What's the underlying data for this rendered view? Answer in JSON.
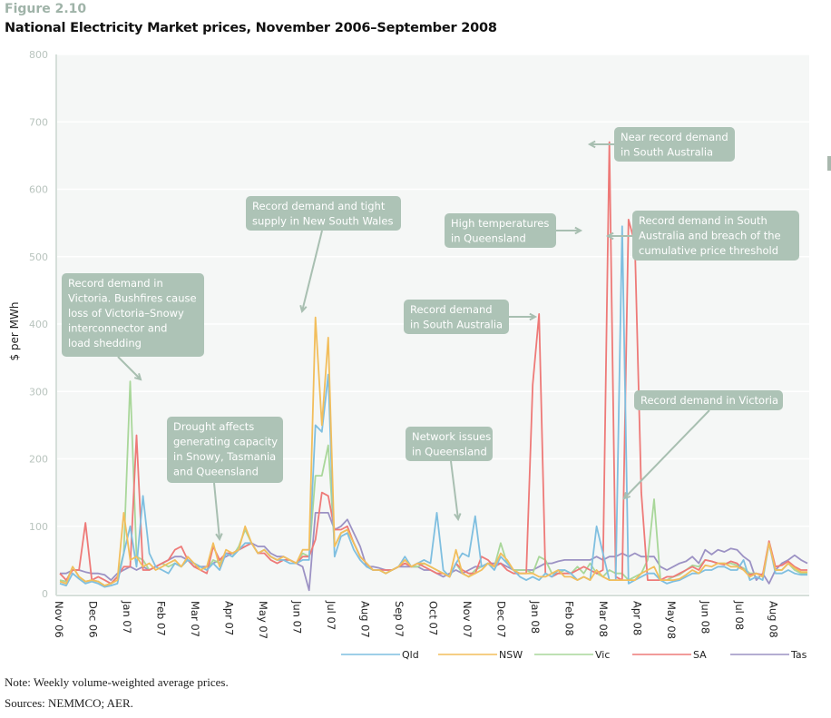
{
  "figure": {
    "label": "Figure 2.10",
    "title": "National Electricity Market prices, November 2006–September 2008"
  },
  "notes": {
    "note": "Note:  Weekly volume-weighted average prices.",
    "sources": "Sources:  NEMMCO; AER."
  },
  "chart_data": {
    "type": "line",
    "title": "National Electricity Market prices, November 2006–September 2008",
    "xlabel": "",
    "ylabel": "$ per MWh",
    "ylim": [
      0,
      800
    ],
    "yticks": [
      0,
      100,
      200,
      300,
      400,
      500,
      600,
      700,
      800
    ],
    "grid": true,
    "legend_position": "bottom-right",
    "x_ticks": [
      "Nov 06",
      "Dec 06",
      "Jan 07",
      "Feb 07",
      "Mar 07",
      "Apr 07",
      "May 07",
      "Jun 07",
      "Jul 07",
      "Aug 07",
      "Sep 07",
      "Oct 07",
      "Nov 07",
      "Dec 07",
      "Jan 08",
      "Feb 08",
      "Mar 08",
      "Apr 08",
      "May 08",
      "Jun 08",
      "Jul 08",
      "Aug 08"
    ],
    "x_unit": "week index (weekly points, week 0 = first week of Nov 06, ~4.3 weeks per month)",
    "series": [
      {
        "name": "Qld",
        "color": "#7fbfe0",
        "values": [
          15,
          12,
          30,
          22,
          15,
          18,
          15,
          10,
          12,
          15,
          60,
          100,
          40,
          145,
          60,
          40,
          35,
          30,
          45,
          40,
          50,
          45,
          40,
          35,
          45,
          35,
          60,
          55,
          65,
          75,
          75,
          60,
          65,
          55,
          50,
          50,
          45,
          45,
          50,
          50,
          250,
          240,
          325,
          55,
          85,
          90,
          65,
          50,
          40,
          35,
          35,
          30,
          35,
          40,
          55,
          40,
          45,
          50,
          45,
          120,
          35,
          25,
          45,
          60,
          55,
          115,
          40,
          45,
          35,
          55,
          45,
          35,
          25,
          20,
          25,
          20,
          30,
          25,
          35,
          35,
          30,
          20,
          25,
          20,
          100,
          60,
          20,
          20,
          545,
          15,
          20,
          25,
          30,
          30,
          20,
          15
        ],
        "values_tail": [
          18,
          20,
          25,
          30,
          30,
          35,
          35,
          40,
          40,
          35,
          35,
          50,
          20,
          25,
          20,
          75,
          30,
          30,
          35,
          30,
          28,
          28
        ]
      },
      {
        "name": "NSW",
        "color": "#f2be5c",
        "values": [
          18,
          15,
          40,
          25,
          18,
          20,
          18,
          12,
          15,
          20,
          120,
          50,
          55,
          40,
          45,
          35,
          40,
          45,
          50,
          40,
          55,
          45,
          35,
          40,
          75,
          40,
          65,
          60,
          65,
          100,
          75,
          60,
          65,
          55,
          50,
          55,
          50,
          45,
          65,
          65,
          410,
          250,
          380,
          70,
          90,
          95,
          75,
          55,
          45,
          35,
          35,
          30,
          35,
          40,
          50,
          40,
          45,
          45,
          40,
          35,
          30,
          25,
          65,
          30,
          25,
          30,
          35,
          45,
          40,
          60,
          50,
          35,
          30,
          30,
          30,
          25,
          25,
          30,
          35,
          25,
          25,
          20,
          25,
          20,
          35,
          25,
          20,
          20,
          20,
          20,
          20,
          30,
          35,
          40,
          20,
          20
        ],
        "values_tail": [
          20,
          22,
          28,
          35,
          30,
          42,
          40,
          45,
          45,
          40,
          40,
          35,
          25,
          30,
          25,
          75,
          35,
          35,
          45,
          38,
          32,
          32
        ]
      },
      {
        "name": "Vic",
        "color": "#a9d79a",
        "values": [
          20,
          18,
          40,
          25,
          18,
          20,
          18,
          12,
          15,
          25,
          60,
          315,
          55,
          50,
          35,
          40,
          45,
          40,
          45,
          40,
          50,
          45,
          40,
          35,
          50,
          45,
          60,
          55,
          70,
          95,
          75,
          60,
          65,
          55,
          50,
          50,
          50,
          45,
          60,
          55,
          175,
          175,
          220,
          70,
          90,
          95,
          75,
          55,
          45,
          35,
          35,
          30,
          35,
          40,
          45,
          40,
          40,
          45,
          40,
          35,
          30,
          25,
          45,
          30,
          25,
          35,
          40,
          45,
          40,
          75,
          45,
          35,
          35,
          35,
          30,
          55,
          50,
          30,
          30,
          35,
          30,
          40,
          30,
          45,
          30,
          25,
          35,
          30,
          30,
          20,
          25,
          30,
          50,
          140,
          20,
          20
        ],
        "values_tail": [
          25,
          28,
          35,
          42,
          40,
          50,
          48,
          45,
          45,
          45,
          42,
          38,
          30,
          30,
          25,
          75,
          35,
          35,
          45,
          35,
          30,
          30
        ]
      },
      {
        "name": "SA",
        "color": "#ee7a78",
        "values": [
          30,
          20,
          35,
          35,
          105,
          20,
          25,
          20,
          15,
          25,
          40,
          40,
          235,
          35,
          35,
          40,
          45,
          50,
          65,
          70,
          50,
          40,
          35,
          30,
          70,
          50,
          60,
          60,
          65,
          70,
          75,
          60,
          60,
          50,
          45,
          50,
          50,
          45,
          55,
          55,
          80,
          150,
          145,
          95,
          95,
          100,
          75,
          55,
          45,
          35,
          35,
          35,
          35,
          40,
          45,
          40,
          45,
          40,
          35,
          30,
          30,
          25,
          45,
          35,
          30,
          30,
          55,
          50,
          40,
          45,
          35,
          30,
          30,
          30,
          310,
          415,
          30,
          25,
          30,
          30,
          30,
          35,
          40,
          35,
          30,
          35,
          670,
          25,
          20,
          555,
          520,
          150,
          20,
          20,
          20,
          25
        ],
        "values_tail": [
          25,
          30,
          35,
          40,
          35,
          50,
          48,
          45,
          43,
          48,
          45,
          35,
          28,
          30,
          28,
          78,
          40,
          42,
          48,
          40,
          35,
          35
        ]
      },
      {
        "name": "Tas",
        "color": "#9c92c4",
        "values": [
          30,
          30,
          35,
          35,
          32,
          30,
          30,
          28,
          20,
          30,
          35,
          40,
          35,
          40,
          35,
          40,
          45,
          50,
          55,
          55,
          50,
          40,
          40,
          40,
          45,
          50,
          55,
          60,
          65,
          70,
          75,
          70,
          70,
          60,
          55,
          55,
          50,
          45,
          40,
          5,
          120,
          120,
          120,
          95,
          100,
          110,
          90,
          70,
          40,
          40,
          38,
          35,
          35,
          40,
          40,
          40,
          40,
          35,
          35,
          30,
          25,
          30,
          35,
          30,
          35,
          40,
          40,
          45,
          45,
          45,
          40,
          35,
          35,
          35,
          35,
          40,
          45,
          45,
          48,
          50,
          50,
          50,
          50,
          50,
          55,
          50,
          55,
          55,
          60,
          55,
          60,
          55,
          55,
          55,
          40,
          35
        ],
        "values_tail": [
          40,
          45,
          48,
          55,
          45,
          65,
          58,
          65,
          62,
          67,
          65,
          55,
          48,
          20,
          30,
          15,
          35,
          45,
          50,
          57,
          50,
          45
        ]
      }
    ],
    "annotations": [
      {
        "id": "vic-bushfires",
        "text": [
          "Record demand in",
          "Victoria. Bushfires cause",
          "loss of Victoria–Snowy",
          "interconnector and",
          "load shedding"
        ],
        "target": "Vic spike, Jan 07 (~315)"
      },
      {
        "id": "drought",
        "text": [
          "Drought affects",
          "generating capacity",
          "in Snowy, Tasmania",
          "and Queensland"
        ],
        "target": "Apr 07"
      },
      {
        "id": "nsw-tight-supply",
        "text": [
          "Record demand and  tight",
          "supply in New South Wales"
        ],
        "target": "NSW spike, Jun 07 (~410)"
      },
      {
        "id": "qld-network",
        "text": [
          "Network issues",
          "in Queensland"
        ],
        "target": "Qld, Nov 07"
      },
      {
        "id": "sa-record-1",
        "text": [
          "Record demand",
          "in South Australia"
        ],
        "target": "SA spike, Jan 08 (~415)"
      },
      {
        "id": "qld-high-temp",
        "text": [
          "High temperatures",
          "in Queensland"
        ],
        "target": "Qld spike, Feb 08 (~545)"
      },
      {
        "id": "sa-near-record",
        "text": [
          "Near record demand",
          "in South Australia"
        ],
        "target": "SA spike, Feb 08 (~670)"
      },
      {
        "id": "sa-cpt-breach",
        "text": [
          "Record demand in South",
          "Australia and breach of the",
          "cumulative price threshold"
        ],
        "target": "SA spike, Mar 08 (~555)"
      },
      {
        "id": "vic-record",
        "text": [
          "Record demand in Victoria"
        ],
        "target": "Vic, Mar 08 (~140)"
      }
    ]
  }
}
